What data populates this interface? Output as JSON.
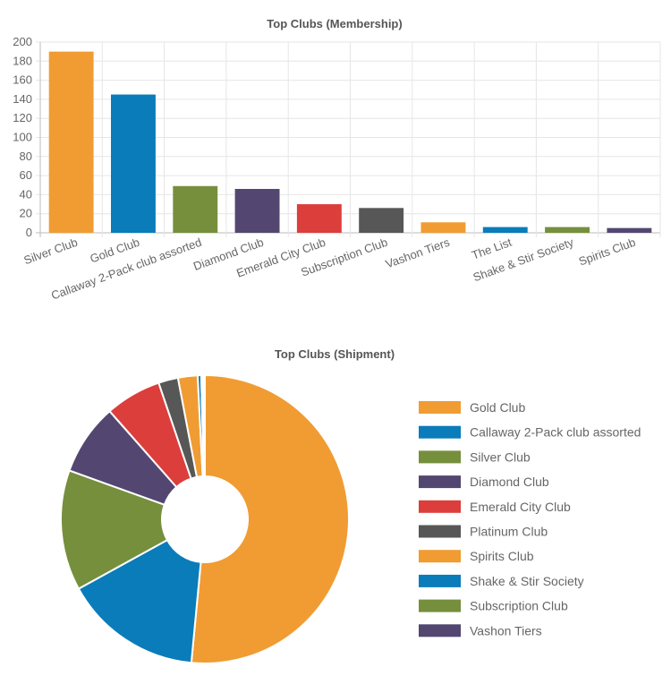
{
  "chart_data": [
    {
      "type": "bar",
      "title": "Top Clubs (Membership)",
      "categories": [
        "Silver Club",
        "Gold Club",
        "Callaway 2-Pack club assorted",
        "Diamond Club",
        "Emerald City Club",
        "Subscription Club",
        "Vashon Tiers",
        "The List",
        "Shake & Stir Society",
        "Spirits Club"
      ],
      "values": [
        190,
        145,
        49,
        46,
        30,
        26,
        11,
        6,
        6,
        5
      ],
      "colors": [
        "#f09c33",
        "#0a7cba",
        "#768f3c",
        "#534771",
        "#dc3e3c",
        "#575757",
        "#f09c33",
        "#0a7cba",
        "#768f3c",
        "#534771"
      ],
      "ylim": [
        0,
        200
      ],
      "yticks": [
        "200",
        "180",
        "160",
        "140",
        "120",
        "100",
        "80",
        "60",
        "40",
        "20",
        "0"
      ],
      "grid": true,
      "xlabel": "",
      "ylabel": ""
    },
    {
      "type": "pie",
      "title": "Top Clubs (Shipment)",
      "labels": [
        "Gold Club",
        "Callaway 2-Pack club assorted",
        "Silver Club",
        "Diamond Club",
        "Emerald City Club",
        "Platinum Club",
        "Spirits Club",
        "Shake & Stir Society",
        "Subscription Club",
        "Vashon Tiers"
      ],
      "values": [
        51.5,
        15.5,
        13.5,
        8.0,
        6.3,
        2.2,
        2.2,
        0.4,
        0.2,
        0.2
      ],
      "colors": [
        "#f09c33",
        "#0a7cba",
        "#768f3c",
        "#534771",
        "#dc3e3c",
        "#575757",
        "#f09c33",
        "#0a7cba",
        "#768f3c",
        "#534771"
      ],
      "legend": "right",
      "donut": true
    }
  ]
}
